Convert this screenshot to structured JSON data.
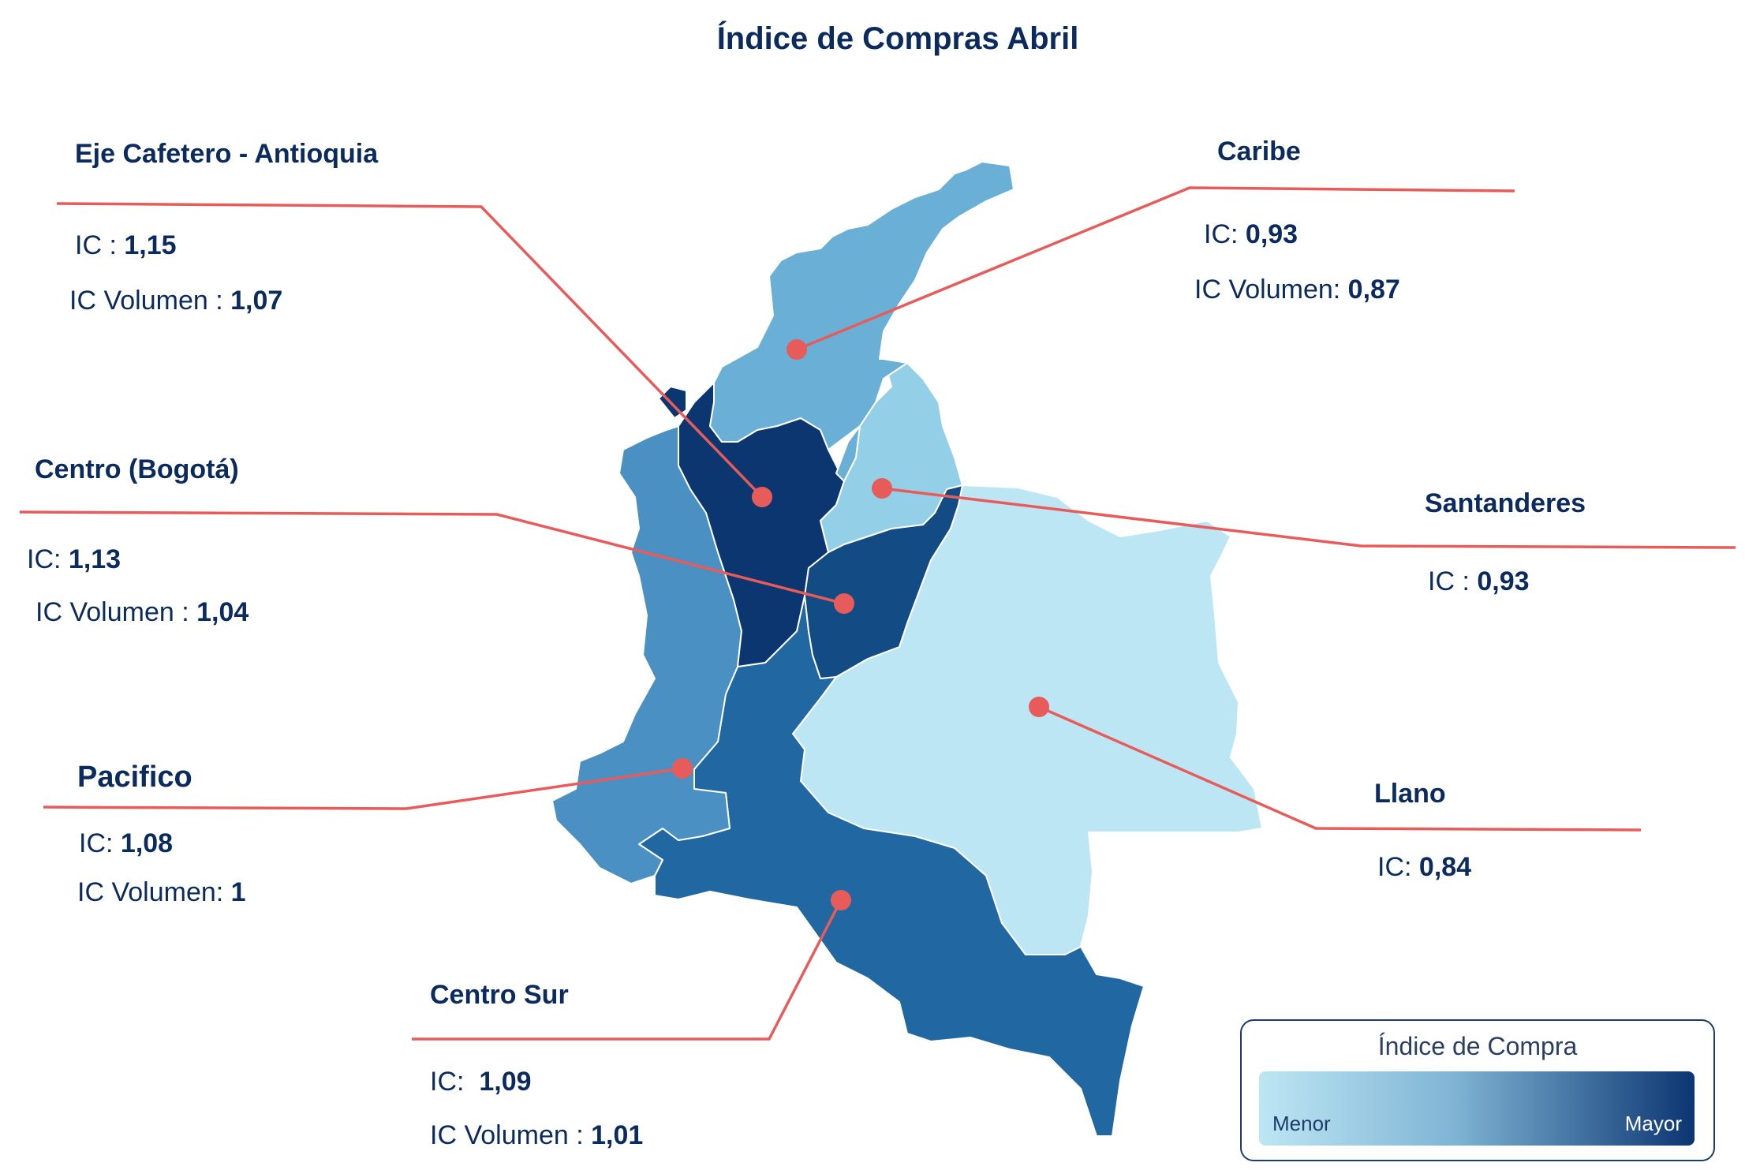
{
  "title": "Índice de Compras Abril",
  "colors": {
    "leader_line": "#e85b5b",
    "text": "#0b2a5e",
    "scale_low": "#bde6f4",
    "scale_high": "#0b3571"
  },
  "regions": {
    "eje_cafetero": {
      "name": "Eje Cafetero - Antioquia",
      "ic_label": "IC : ",
      "ic": "1,15",
      "icv_label": "IC Volumen : ",
      "icv": "1,07",
      "fill": "#0c3670"
    },
    "caribe": {
      "name": "Caribe",
      "ic_label": "IC: ",
      "ic": "0,93",
      "icv_label": "IC Volumen: ",
      "icv": "0,87",
      "fill": "#6ab0d6"
    },
    "centro": {
      "name": "Centro (Bogotá)",
      "ic_label": "IC: ",
      "ic": "1,13",
      "icv_label": "IC Volumen : ",
      "icv": "1,04",
      "fill": "#134c84"
    },
    "santanderes": {
      "name": "Santanderes",
      "ic_label": "IC : ",
      "ic": "0,93",
      "fill": "#94cfe8"
    },
    "pacifico": {
      "name": "Pacifico",
      "ic_label": "IC: ",
      "ic": "1,08",
      "icv_label": "IC Volumen: ",
      "icv": "1",
      "fill": "#4a90c2"
    },
    "llano": {
      "name": "Llano",
      "ic_label": "IC: ",
      "ic": "0,84",
      "fill": "#bde6f4"
    },
    "centro_sur": {
      "name": "Centro Sur",
      "ic_label": "IC:  ",
      "ic": "1,09",
      "icv_label": "IC Volumen : ",
      "icv": "1,01",
      "fill": "#2167a1"
    }
  },
  "legend": {
    "title": "Índice de Compra",
    "low": "Menor",
    "high": "Mayor"
  }
}
